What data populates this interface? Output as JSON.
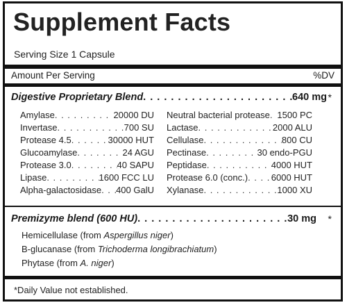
{
  "title": "Supplement Facts",
  "serving_size": "Serving Size 1 Capsule",
  "amount_per_serving": "Amount Per Serving",
  "dv_header": "%DV",
  "digestive_blend": {
    "name": "Digestive Proprietary Blend",
    "dots": " . . . . . . . . . . . . . . . . . . . . . . . . . . . . . . . . . . . . . . .",
    "amount": "640 mg",
    "dv": "*",
    "left_column": [
      {
        "name": "Amylase",
        "dots": " . . . . . . . . . . . . . . . . . .",
        "value": "20000 DU"
      },
      {
        "name": "Invertase",
        "dots": " . . . . . . . . . . . . . . . . . .",
        "value": "700 SU"
      },
      {
        "name": "Protease 4.5",
        "dots": " . . . . . . . . . . . . . . . . . .",
        "value": "30000 HUT"
      },
      {
        "name": "Glucoamylase",
        "dots": " . . . . . . . . . . . . . . . . . .",
        "value": "24 AGU"
      },
      {
        "name": "Protease 3.0",
        "dots": " . . . . . . . . . . . . . . . . . .",
        "value": "40 SAPU"
      },
      {
        "name": "Lipase",
        "dots": " . . . . . . . . . . . . . . . . . .",
        "value": "1600 FCC LU"
      },
      {
        "name": "Alpha-galactosidase",
        "dots": " . . . . . . . . . . . . . . . . . .",
        "value": "400 GalU"
      }
    ],
    "right_column": [
      {
        "name": "Neutral bacterial protease",
        "dots": " . . . . . . . . . . . . . . . . . .",
        "value": "1500 PC"
      },
      {
        "name": "Lactase",
        "dots": " . . . . . . . . . . . . . . . . . . . . . . .",
        "value": "2000 ALU"
      },
      {
        "name": "Cellulase",
        "dots": " . . . . . . . . . . . . . . . . . . . . . . .",
        "value": "800 CU"
      },
      {
        "name": "Pectinase",
        "dots": " . . . . . . . . . . . . . . . . . . . . . . .",
        "value": "30 endo-PGU"
      },
      {
        "name": "Peptidase",
        "dots": " . . . . . . . . . . . . . . . . . . . . . . .",
        "value": "4000 HUT"
      },
      {
        "name": "Protease 6.0 (conc.)",
        "dots": " . . . . . . . . . . . . . . . . . . . . . . .",
        "value": "6000 HUT"
      },
      {
        "name": "Xylanase",
        "dots": " . . . . . . . . . . . . . . . . . . . . . . .",
        "value": "1000 XU"
      }
    ]
  },
  "premizyme_blend": {
    "name": "Premizyme blend (600 HU)",
    "dots": " . . . . . . . . . . . . . . . . . . . . . . . . . . . . . . . . . . . . . . . . . .",
    "amount": "30 mg",
    "dv": "*",
    "items": [
      {
        "prefix": "Hemicellulase (from ",
        "source": "Aspergillus niger",
        "suffix": ")"
      },
      {
        "prefix": "B-glucanase (from ",
        "source": "Trichoderma longibrachiatum",
        "suffix": ")"
      },
      {
        "prefix": "Phytase (from ",
        "source": "A. niger",
        "suffix": ")"
      }
    ]
  },
  "footnote": "*Daily Value not established."
}
